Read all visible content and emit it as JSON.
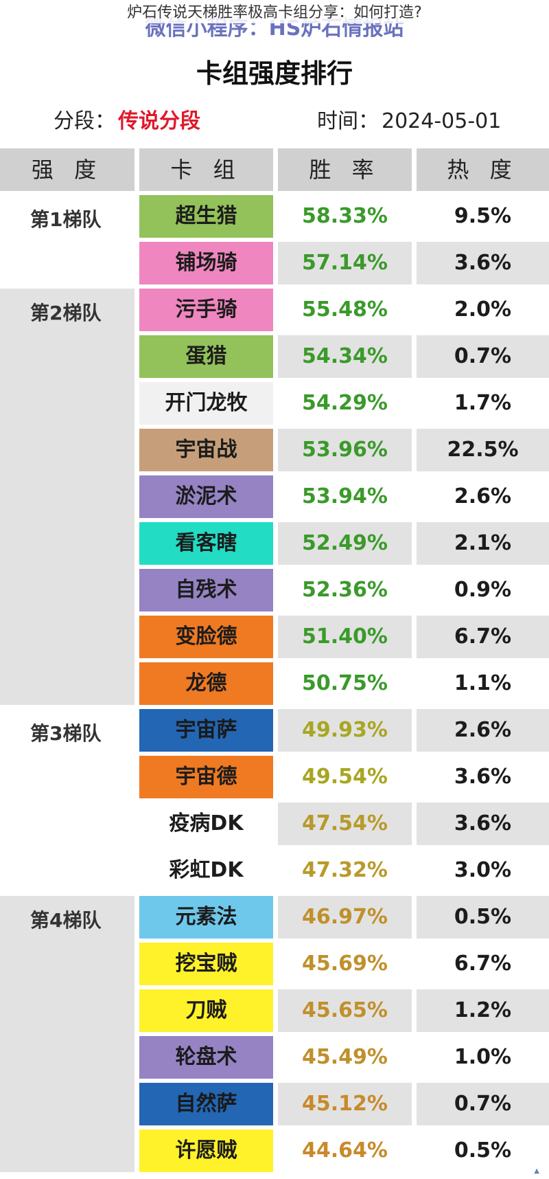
{
  "caption": "炉石传说天梯胜率极高卡组分享：如何打造?",
  "watermark": "微信小程序：HS炉石情报站",
  "title": "卡组强度排行",
  "meta": {
    "segment_label": "分段：",
    "segment_value": "传说分段",
    "time_label": "时间：",
    "time_value": "2024-05-01"
  },
  "headers": [
    "强 度",
    "卡 组",
    "胜 率",
    "热 度"
  ],
  "tiers": [
    {
      "label": "第1梯队",
      "start": 0,
      "count": 2
    },
    {
      "label": "第2梯队",
      "start": 2,
      "count": 9
    },
    {
      "label": "第3梯队",
      "start": 11,
      "count": 4
    },
    {
      "label": "第4梯队",
      "start": 15,
      "count": 6
    }
  ],
  "rows": [
    {
      "deck": "超生猎",
      "winrate": "58.33%",
      "heat": "9.5%",
      "deck_color": "#93c15a",
      "wr_color": "#3a9a2a"
    },
    {
      "deck": "铺场骑",
      "winrate": "57.14%",
      "heat": "3.6%",
      "deck_color": "#ef86bf",
      "wr_color": "#3a9a2a"
    },
    {
      "deck": "污手骑",
      "winrate": "55.48%",
      "heat": "2.0%",
      "deck_color": "#ef86bf",
      "wr_color": "#3a9a2a"
    },
    {
      "deck": "蛋猎",
      "winrate": "54.34%",
      "heat": "0.7%",
      "deck_color": "#93c15a",
      "wr_color": "#3a9a2a"
    },
    {
      "deck": "开门龙牧",
      "winrate": "54.29%",
      "heat": "1.7%",
      "deck_color": "#f1f1f1",
      "wr_color": "#3a9a2a"
    },
    {
      "deck": "宇宙战",
      "winrate": "53.96%",
      "heat": "22.5%",
      "deck_color": "#c69f7a",
      "wr_color": "#3a9a2a"
    },
    {
      "deck": "淤泥术",
      "winrate": "53.94%",
      "heat": "2.6%",
      "deck_color": "#9583c4",
      "wr_color": "#3a9a2a"
    },
    {
      "deck": "看客瞎",
      "winrate": "52.49%",
      "heat": "2.1%",
      "deck_color": "#22dcc4",
      "wr_color": "#3a9a2a"
    },
    {
      "deck": "自残术",
      "winrate": "52.36%",
      "heat": "0.9%",
      "deck_color": "#9583c4",
      "wr_color": "#3a9a2a"
    },
    {
      "deck": "变脸德",
      "winrate": "51.40%",
      "heat": "6.7%",
      "deck_color": "#ef7a22",
      "wr_color": "#3a9a2a"
    },
    {
      "deck": "龙德",
      "winrate": "50.75%",
      "heat": "1.1%",
      "deck_color": "#ef7a22",
      "wr_color": "#3a9a2a"
    },
    {
      "deck": "宇宙萨",
      "winrate": "49.93%",
      "heat": "2.6%",
      "deck_color": "#2266b4",
      "wr_color": "#a8a622"
    },
    {
      "deck": "宇宙德",
      "winrate": "49.54%",
      "heat": "3.6%",
      "deck_color": "#ef7a22",
      "wr_color": "#a8a622"
    },
    {
      "deck": "疫病DK",
      "winrate": "47.54%",
      "heat": "3.6%",
      "deck_color": "#ffffff",
      "wr_color": "#b89a2a"
    },
    {
      "deck": "彩虹DK",
      "winrate": "47.32%",
      "heat": "3.0%",
      "deck_color": "#ffffff",
      "wr_color": "#b89a2a"
    },
    {
      "deck": "元素法",
      "winrate": "46.97%",
      "heat": "0.5%",
      "deck_color": "#6ec8ec",
      "wr_color": "#c0902a"
    },
    {
      "deck": "挖宝贼",
      "winrate": "45.69%",
      "heat": "6.7%",
      "deck_color": "#fff22a",
      "wr_color": "#c0902a"
    },
    {
      "deck": "刀贼",
      "winrate": "45.65%",
      "heat": "1.2%",
      "deck_color": "#fff22a",
      "wr_color": "#c0902a"
    },
    {
      "deck": "轮盘术",
      "winrate": "45.49%",
      "heat": "1.0%",
      "deck_color": "#9583c4",
      "wr_color": "#c0902a"
    },
    {
      "deck": "自然萨",
      "winrate": "45.12%",
      "heat": "0.7%",
      "deck_color": "#2266b4",
      "wr_color": "#c88a2a"
    },
    {
      "deck": "许愿贼",
      "winrate": "44.64%",
      "heat": "0.5%",
      "deck_color": "#fff22a",
      "wr_color": "#c88a2a"
    }
  ],
  "colors": {
    "header_bg": "#d0d0d0",
    "stripe": "#e2e2e2",
    "segment_accent": "#e0182a"
  }
}
